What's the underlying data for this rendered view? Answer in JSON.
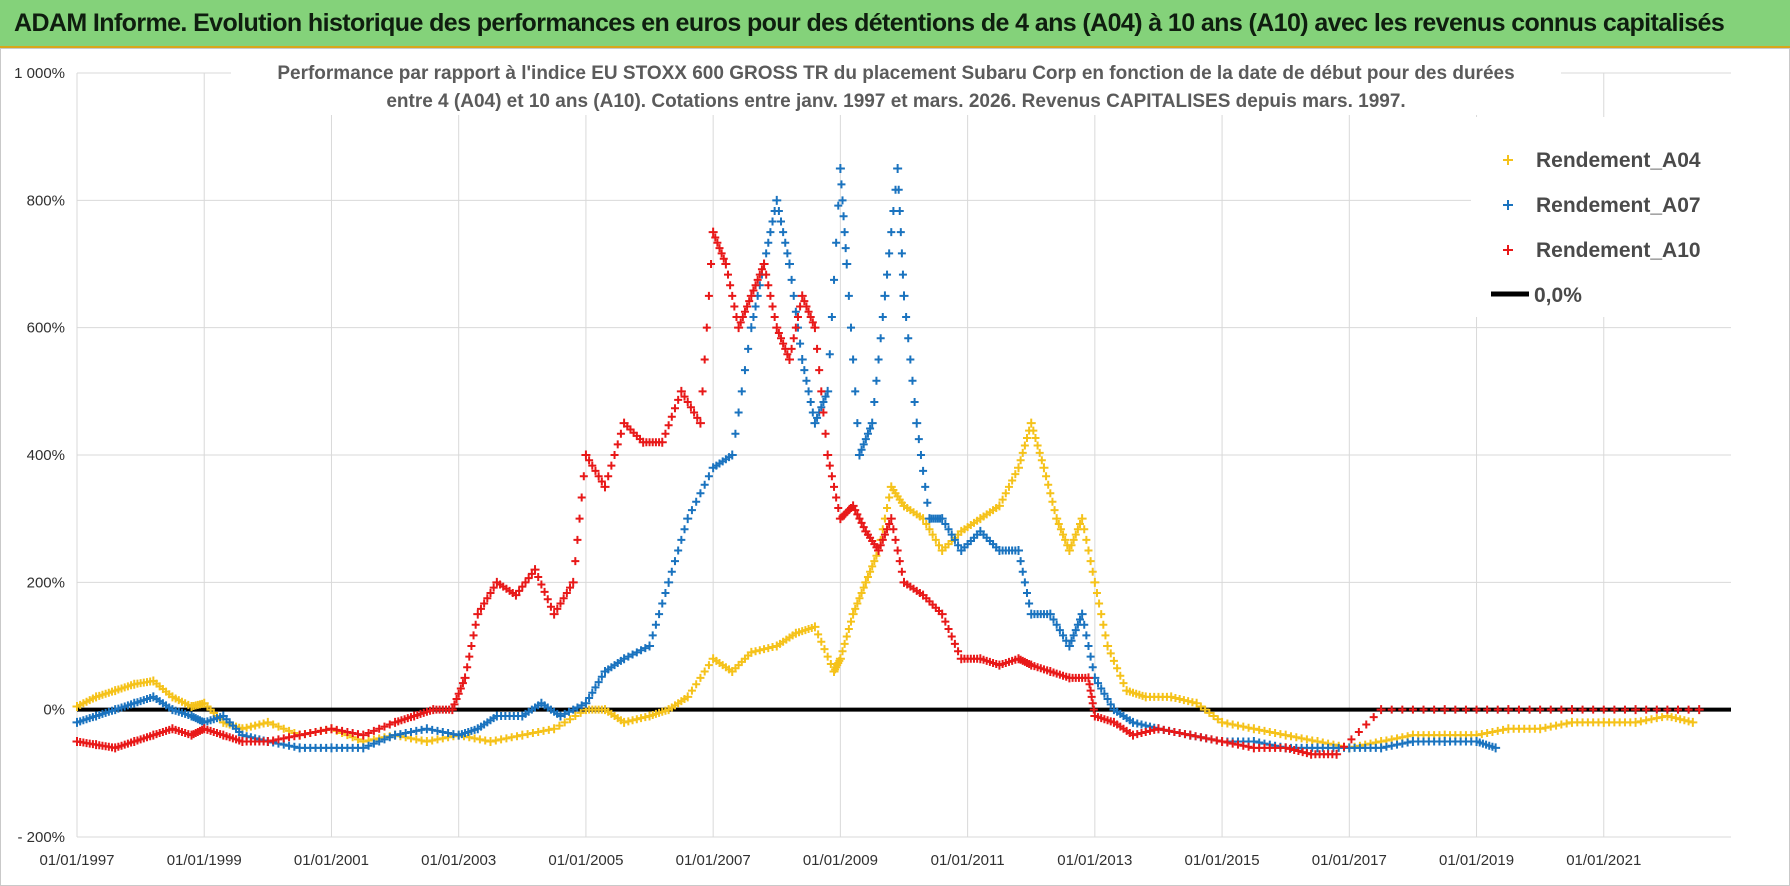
{
  "banner": {
    "title": "ADAM Informe. Evolution historique des performances en euros pour des détentions de 4 ans (A04) à 10 ans (A10) avec les revenus connus capitalisés",
    "background": "#84d27a"
  },
  "chart_data": {
    "type": "scatter",
    "title_lines": [
      "Performance par rapport à l'indice EU STOXX 600 GROSS TR  du placement Subaru Corp en fonction de la date de début pour des durées",
      "entre 4 (A04) et 10 ans (A10).  Cotations entre janv. 1997 et mars. 2026.  Revenus CAPITALISES depuis mars. 1997."
    ],
    "xlabel": "",
    "ylabel": "",
    "xlim": [
      1997.0,
      2023.0
    ],
    "ylim": [
      -200,
      1000
    ],
    "y_ticks": [
      -200,
      0,
      200,
      400,
      600,
      800,
      1000
    ],
    "y_tick_labels": [
      "- 200%",
      "0%",
      "200%",
      "400%",
      "600%",
      "800%",
      "1 000%"
    ],
    "x_ticks": [
      1997,
      1999,
      2001,
      2003,
      2005,
      2007,
      2009,
      2011,
      2013,
      2015,
      2017,
      2019,
      2021
    ],
    "x_tick_labels": [
      "01/01/1997",
      "01/01/1999",
      "01/01/2001",
      "01/01/2003",
      "01/01/2005",
      "01/01/2007",
      "01/01/2009",
      "01/01/2011",
      "01/01/2013",
      "01/01/2015",
      "01/01/2017",
      "01/01/2019",
      "01/01/2021"
    ],
    "grid": true,
    "legend_position": "top-right",
    "series": [
      {
        "name": "Rendement_A04",
        "color": "#f5c21a",
        "marker": "+",
        "x": [
          1997.0,
          1997.3,
          1997.6,
          1997.9,
          1998.2,
          1998.5,
          1998.8,
          1999.0,
          1999.3,
          1999.6,
          2000.0,
          2000.5,
          2001.0,
          2001.5,
          2002.0,
          2002.5,
          2003.0,
          2003.5,
          2004.0,
          2004.5,
          2005.0,
          2005.3,
          2005.6,
          2006.0,
          2006.3,
          2006.6,
          2007.0,
          2007.3,
          2007.6,
          2008.0,
          2008.3,
          2008.6,
          2008.9,
          2009.0,
          2009.2,
          2009.4,
          2009.6,
          2009.8,
          2010.0,
          2010.3,
          2010.6,
          2010.9,
          2011.2,
          2011.5,
          2011.8,
          2012.0,
          2012.2,
          2012.4,
          2012.6,
          2012.8,
          2013.0,
          2013.2,
          2013.5,
          2013.8,
          2014.2,
          2014.6,
          2015.0,
          2015.5,
          2016.0,
          2016.5,
          2017.0,
          2017.5,
          2018.0,
          2018.5,
          2019.0,
          2019.5,
          2020.0,
          2020.5,
          2021.0,
          2021.5,
          2022.0,
          2022.4
        ],
        "y": [
          5,
          20,
          30,
          40,
          45,
          20,
          5,
          10,
          -20,
          -30,
          -20,
          -40,
          -30,
          -50,
          -40,
          -50,
          -40,
          -50,
          -40,
          -30,
          0,
          0,
          -20,
          -10,
          0,
          20,
          80,
          60,
          90,
          100,
          120,
          130,
          60,
          80,
          150,
          200,
          250,
          350,
          320,
          300,
          250,
          280,
          300,
          320,
          380,
          450,
          380,
          300,
          250,
          300,
          200,
          100,
          30,
          20,
          20,
          10,
          -20,
          -30,
          -40,
          -50,
          -60,
          -50,
          -40,
          -40,
          -40,
          -30,
          -30,
          -20,
          -20,
          -20,
          -10,
          -20
        ]
      },
      {
        "name": "Rendement_A07",
        "color": "#1a73bf",
        "marker": "+",
        "x": [
          1997.0,
          1997.3,
          1997.6,
          1997.9,
          1998.2,
          1998.5,
          1998.8,
          1999.0,
          1999.3,
          1999.6,
          2000.0,
          2000.5,
          2001.0,
          2001.5,
          2002.0,
          2002.5,
          2003.0,
          2003.3,
          2003.6,
          2004.0,
          2004.3,
          2004.6,
          2005.0,
          2005.3,
          2005.6,
          2006.0,
          2006.3,
          2006.6,
          2007.0,
          2007.3,
          2007.6,
          2007.8,
          2008.0,
          2008.2,
          2008.4,
          2008.6,
          2008.8,
          2009.0,
          2009.1,
          2009.3,
          2009.5,
          2009.7,
          2009.9,
          2010.0,
          2010.2,
          2010.4,
          2010.6,
          2010.9,
          2011.2,
          2011.5,
          2011.8,
          2012.0,
          2012.3,
          2012.6,
          2012.8,
          2013.0,
          2013.3,
          2013.6,
          2014.0,
          2014.5,
          2015.0,
          2015.5,
          2016.0,
          2016.5,
          2017.0,
          2017.5,
          2018.0,
          2018.5,
          2019.0,
          2019.3
        ],
        "y": [
          -20,
          -10,
          0,
          10,
          20,
          0,
          -10,
          -20,
          -10,
          -40,
          -50,
          -60,
          -60,
          -60,
          -40,
          -30,
          -40,
          -30,
          -10,
          -10,
          10,
          -10,
          10,
          60,
          80,
          100,
          200,
          300,
          380,
          400,
          600,
          700,
          800,
          700,
          550,
          450,
          500,
          850,
          700,
          400,
          450,
          650,
          850,
          650,
          450,
          300,
          300,
          250,
          280,
          250,
          250,
          150,
          150,
          100,
          150,
          50,
          0,
          -20,
          -30,
          -40,
          -50,
          -50,
          -60,
          -60,
          -60,
          -60,
          -50,
          -50,
          -50,
          -60
        ]
      },
      {
        "name": "Rendement_A10",
        "color": "#e81818",
        "marker": "+",
        "x": [
          1997.0,
          1997.3,
          1997.6,
          1997.9,
          1998.2,
          1998.5,
          1998.8,
          1999.0,
          1999.3,
          1999.6,
          2000.0,
          2000.5,
          2001.0,
          2001.5,
          2002.0,
          2002.3,
          2002.6,
          2002.9,
          2003.1,
          2003.3,
          2003.6,
          2003.9,
          2004.2,
          2004.5,
          2004.8,
          2005.0,
          2005.3,
          2005.6,
          2005.9,
          2006.2,
          2006.5,
          2006.8,
          2007.0,
          2007.2,
          2007.4,
          2007.6,
          2007.8,
          2008.0,
          2008.2,
          2008.4,
          2008.6,
          2008.8,
          2009.0,
          2009.2,
          2009.4,
          2009.6,
          2009.8,
          2010.0,
          2010.3,
          2010.6,
          2010.9,
          2011.2,
          2011.5,
          2011.8,
          2012.0,
          2012.3,
          2012.6,
          2012.9,
          2013.0,
          2013.3,
          2013.6,
          2014.0,
          2014.5,
          2015.0,
          2015.5,
          2016.0,
          2016.4,
          2016.8,
          2017.5,
          2018.5,
          2019.5,
          2020.5,
          2021.5,
          2022.5
        ],
        "y": [
          -50,
          -55,
          -60,
          -50,
          -40,
          -30,
          -40,
          -30,
          -40,
          -50,
          -50,
          -40,
          -30,
          -40,
          -20,
          -10,
          0,
          0,
          50,
          150,
          200,
          180,
          220,
          150,
          200,
          400,
          350,
          450,
          420,
          420,
          500,
          450,
          750,
          700,
          600,
          650,
          700,
          600,
          550,
          650,
          600,
          400,
          300,
          320,
          280,
          250,
          300,
          200,
          180,
          150,
          80,
          80,
          70,
          80,
          70,
          60,
          50,
          50,
          -10,
          -20,
          -40,
          -30,
          -40,
          -50,
          -60,
          -60,
          -70,
          -70,
          0,
          0,
          0,
          0,
          0,
          0
        ]
      }
    ],
    "reference_line": {
      "name": "0,0%",
      "value": 0,
      "color": "#000000"
    }
  }
}
